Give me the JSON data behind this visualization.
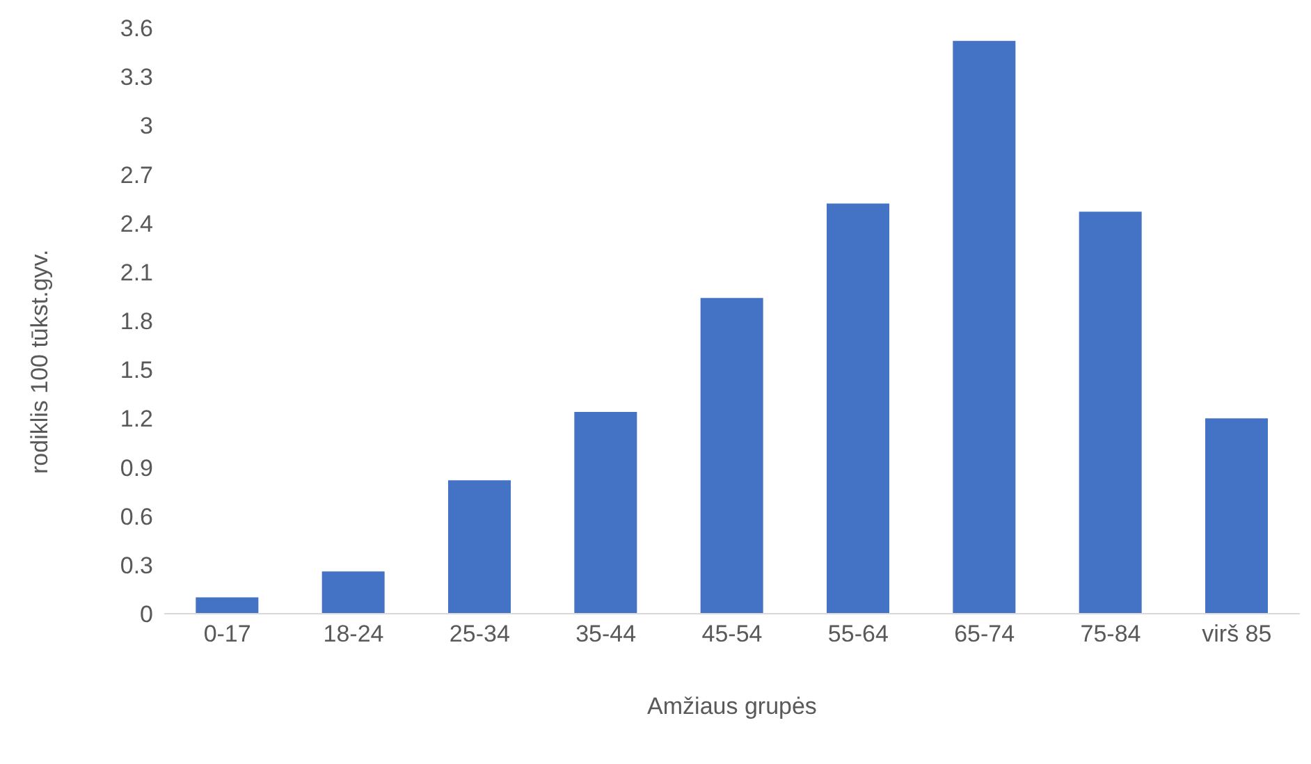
{
  "chart_data": {
    "type": "bar",
    "xlabel": "Amžiaus grupės",
    "ylabel": "rodiklis 100 tūkst.gyv.",
    "categories": [
      "0-17",
      "18-24",
      "25-34",
      "35-44",
      "45-54",
      "55-64",
      "65-74",
      "75-84",
      "virš 85"
    ],
    "values": [
      0.1,
      0.26,
      0.82,
      1.24,
      1.94,
      2.52,
      3.52,
      2.47,
      1.2
    ],
    "color": "#4472c4",
    "ylim": [
      0,
      3.6
    ],
    "yticks": [
      0,
      0.3,
      0.6,
      0.9,
      1.2,
      1.5,
      1.8,
      2.1,
      2.4,
      2.7,
      3,
      3.3,
      3.6
    ],
    "grid": false,
    "legend": false
  }
}
